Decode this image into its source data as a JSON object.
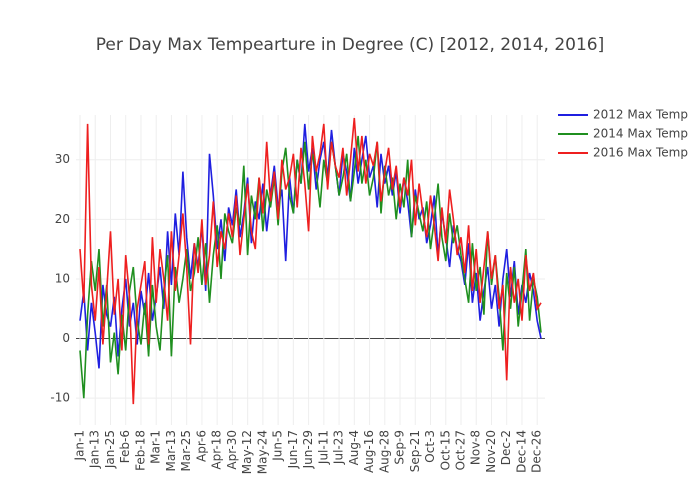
{
  "chart_data": {
    "type": "line",
    "title": "Per Day Max Tempearture in Degree (C) [2012, 2014, 2016]",
    "categories": [
      "Jan-1",
      null,
      null,
      null,
      "Jan-13",
      null,
      null,
      null,
      "Jan-25",
      null,
      null,
      null,
      "Feb-6",
      null,
      null,
      null,
      "Feb-18",
      null,
      null,
      null,
      "Mar-1",
      null,
      null,
      null,
      "Mar-13",
      null,
      null,
      null,
      "Mar-25",
      null,
      null,
      null,
      "Apr-6",
      null,
      null,
      null,
      "Apr-18",
      null,
      null,
      null,
      "Apr-30",
      null,
      null,
      null,
      "May-12",
      null,
      null,
      null,
      "May-24",
      null,
      null,
      null,
      "Jun-5",
      null,
      null,
      null,
      "Jun-17",
      null,
      null,
      null,
      "Jun-29",
      null,
      null,
      null,
      "Jul-11",
      null,
      null,
      null,
      "Jul-23",
      null,
      null,
      null,
      "Aug-4",
      null,
      null,
      null,
      "Aug-16",
      null,
      null,
      null,
      "Aug-28",
      null,
      null,
      null,
      "Sep-9",
      null,
      null,
      null,
      "Sep-21",
      null,
      null,
      null,
      "Oct-3",
      null,
      null,
      null,
      "Oct-15",
      null,
      null,
      null,
      "Oct-27",
      null,
      null,
      null,
      "Nov-8",
      null,
      null,
      null,
      "Nov-20",
      null,
      null,
      null,
      "Dec-2",
      null,
      null,
      null,
      "Dec-14",
      null,
      null,
      null,
      "Dec-26",
      null
    ],
    "series": [
      {
        "name": "2012 Max Temp",
        "color": "#1f1fe0",
        "values": [
          3,
          8,
          -2,
          6,
          1,
          -5,
          9,
          4,
          2,
          7,
          -3,
          5,
          10,
          2,
          6,
          -1,
          8,
          4,
          11,
          3,
          7,
          12,
          5,
          18,
          9,
          21,
          14,
          28,
          17,
          10,
          16,
          12,
          19,
          8,
          31,
          24,
          15,
          20,
          13,
          22,
          19,
          25,
          17,
          21,
          27,
          16,
          23,
          20,
          26,
          18,
          24,
          29,
          22,
          25,
          13,
          27,
          21,
          30,
          26,
          36,
          28,
          32,
          25,
          30,
          33,
          27,
          35,
          29,
          24,
          31,
          28,
          23,
          32,
          26,
          30,
          34,
          27,
          29,
          22,
          31,
          26,
          29,
          24,
          28,
          21,
          27,
          23,
          17,
          25,
          20,
          22,
          16,
          19,
          24,
          14,
          21,
          17,
          12,
          19,
          15,
          13,
          9,
          16,
          6,
          11,
          3,
          8,
          12,
          5,
          9,
          2,
          10,
          15,
          7,
          13,
          4,
          9,
          6,
          11,
          8,
          3,
          0
        ]
      },
      {
        "name": "2014 Max Temp",
        "color": "#1f8f1f",
        "values": [
          -2,
          -10,
          4,
          13,
          8,
          15,
          2,
          9,
          -4,
          1,
          -6,
          4,
          -2,
          8,
          12,
          3,
          -1,
          6,
          -3,
          9,
          2,
          -2,
          8,
          14,
          -3,
          12,
          6,
          10,
          15,
          8,
          11,
          17,
          9,
          16,
          6,
          14,
          19,
          10,
          21,
          18,
          16,
          22,
          19,
          29,
          14,
          24,
          20,
          27,
          18,
          25,
          22,
          27,
          19,
          28,
          32,
          24,
          21,
          30,
          26,
          33,
          25,
          31,
          28,
          22,
          30,
          26,
          33,
          29,
          24,
          27,
          31,
          23,
          28,
          34,
          26,
          30,
          24,
          27,
          33,
          21,
          29,
          24,
          27,
          20,
          26,
          22,
          30,
          17,
          24,
          21,
          18,
          23,
          15,
          20,
          26,
          17,
          13,
          21,
          16,
          19,
          14,
          10,
          6,
          16,
          8,
          12,
          4,
          18,
          9,
          14,
          7,
          -2,
          11,
          5,
          12,
          2,
          8,
          15,
          3,
          10,
          7,
          1
        ]
      },
      {
        "name": "2016 Max Temp",
        "color": "#ee1f1f",
        "values": [
          15,
          6,
          36,
          9,
          3,
          12,
          -1,
          8,
          18,
          4,
          10,
          -2,
          14,
          7,
          -11,
          5,
          9,
          13,
          -1,
          17,
          6,
          15,
          10,
          3,
          18,
          8,
          14,
          21,
          12,
          -1,
          16,
          11,
          20,
          9,
          14,
          23,
          12,
          18,
          15,
          21,
          17,
          24,
          14,
          20,
          26,
          18,
          15,
          27,
          21,
          33,
          23,
          28,
          20,
          30,
          25,
          27,
          31,
          22,
          32,
          26,
          18,
          34,
          28,
          31,
          36,
          25,
          33,
          29,
          27,
          32,
          24,
          30,
          37,
          28,
          34,
          26,
          31,
          29,
          33,
          23,
          28,
          32,
          25,
          29,
          22,
          27,
          24,
          30,
          19,
          26,
          21,
          17,
          24,
          19,
          13,
          22,
          16,
          25,
          20,
          14,
          17,
          11,
          19,
          8,
          15,
          6,
          12,
          18,
          10,
          14,
          5,
          9,
          -7,
          12,
          6,
          10,
          3,
          14,
          8,
          11,
          5,
          6
        ]
      }
    ],
    "ylim": [
      -14.5,
      37.5
    ],
    "yticks": [
      -10,
      0,
      10,
      20,
      30
    ],
    "grid": true,
    "zeroline": true,
    "legend": "right"
  }
}
